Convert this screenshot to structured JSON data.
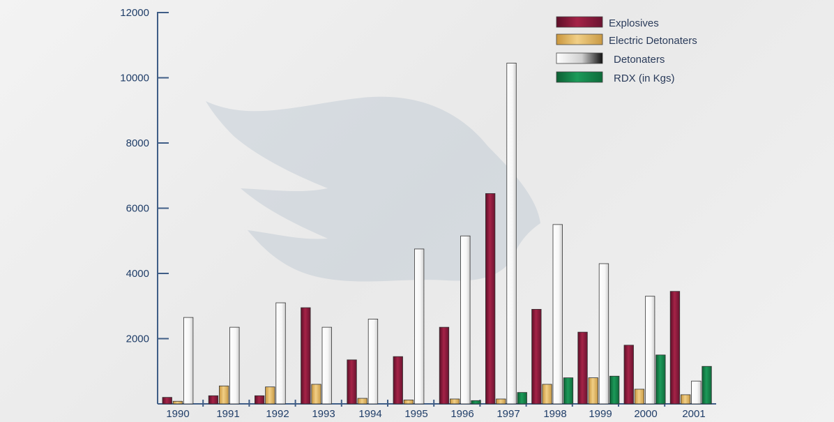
{
  "colors": {
    "explosives": "#8b1a3b",
    "electric": "#e3b866",
    "detonaters": "#ffffff",
    "rdx": "#15804a",
    "axis": "#3f5d86",
    "text": "#1f3d68"
  },
  "chart_data": {
    "type": "bar",
    "categories": [
      "1990",
      "1991",
      "1992",
      "1993",
      "1994",
      "1995",
      "1996",
      "1997",
      "1998",
      "1999",
      "2000",
      "2001"
    ],
    "yticks": [
      "2000",
      "4000",
      "6000",
      "8000",
      "10000",
      "12000"
    ],
    "ylim": [
      0,
      12000
    ],
    "grid": false,
    "legend": "top-right",
    "series": [
      {
        "name": "Explosives",
        "key": "explosives",
        "values": [
          200,
          250,
          250,
          2950,
          1350,
          1450,
          2350,
          6450,
          2900,
          2200,
          1800,
          3450
        ]
      },
      {
        "name": "Electric Detonaters",
        "key": "electric",
        "values": [
          80,
          550,
          520,
          600,
          170,
          120,
          150,
          150,
          600,
          800,
          450,
          280
        ]
      },
      {
        "name": "Detonaters",
        "key": "detonaters",
        "values": [
          2650,
          2350,
          3100,
          2350,
          2600,
          4750,
          5150,
          10450,
          5500,
          4300,
          3300,
          700
        ]
      },
      {
        "name": "RDX (in Kgs)",
        "key": "rdx",
        "values": [
          0,
          0,
          0,
          0,
          0,
          0,
          100,
          350,
          800,
          850,
          1500,
          1150
        ]
      }
    ]
  }
}
